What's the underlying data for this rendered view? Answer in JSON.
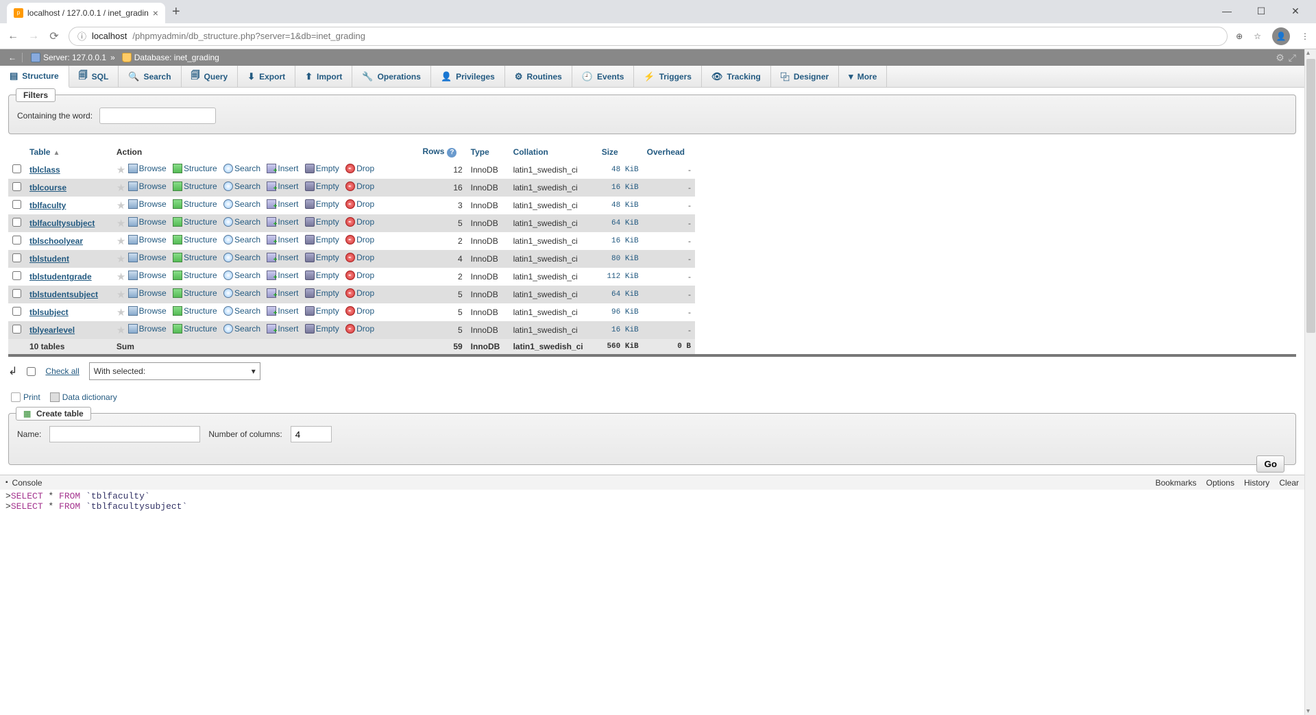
{
  "browser": {
    "tab_title": "localhost / 127.0.0.1 / inet_gradin",
    "url_prefix_icon": "ⓘ",
    "url_host": "localhost",
    "url_path": "/phpmyadmin/db_structure.php?server=1&db=inet_grading"
  },
  "breadcrumb": {
    "server_label": "Server: 127.0.0.1",
    "database_label": "Database: inet_grading"
  },
  "tabs": [
    {
      "icon": "▤",
      "label": "Structure",
      "active": true
    },
    {
      "icon": "🗐",
      "label": "SQL"
    },
    {
      "icon": "🔍",
      "label": "Search"
    },
    {
      "icon": "🗐",
      "label": "Query"
    },
    {
      "icon": "⬇",
      "label": "Export"
    },
    {
      "icon": "⬆",
      "label": "Import"
    },
    {
      "icon": "🔧",
      "label": "Operations"
    },
    {
      "icon": "👤",
      "label": "Privileges"
    },
    {
      "icon": "⚙",
      "label": "Routines"
    },
    {
      "icon": "🕘",
      "label": "Events"
    },
    {
      "icon": "⚡",
      "label": "Triggers"
    },
    {
      "icon": "👁",
      "label": "Tracking"
    },
    {
      "icon": "⿻",
      "label": "Designer"
    },
    {
      "icon": "▾",
      "label": "More"
    }
  ],
  "filters": {
    "legend": "Filters",
    "containing_label": "Containing the word:",
    "value": ""
  },
  "columns": {
    "table": "Table",
    "action": "Action",
    "rows": "Rows",
    "type": "Type",
    "collation": "Collation",
    "size": "Size",
    "overhead": "Overhead"
  },
  "actions": {
    "browse": "Browse",
    "structure": "Structure",
    "search": "Search",
    "insert": "Insert",
    "empty": "Empty",
    "drop": "Drop"
  },
  "rows": [
    {
      "name": "tblclass",
      "rows": "12",
      "type": "InnoDB",
      "collation": "latin1_swedish_ci",
      "size": "48 KiB",
      "overhead": "-"
    },
    {
      "name": "tblcourse",
      "rows": "16",
      "type": "InnoDB",
      "collation": "latin1_swedish_ci",
      "size": "16 KiB",
      "overhead": "-"
    },
    {
      "name": "tblfaculty",
      "rows": "3",
      "type": "InnoDB",
      "collation": "latin1_swedish_ci",
      "size": "48 KiB",
      "overhead": "-"
    },
    {
      "name": "tblfacultysubject",
      "rows": "5",
      "type": "InnoDB",
      "collation": "latin1_swedish_ci",
      "size": "64 KiB",
      "overhead": "-"
    },
    {
      "name": "tblschoolyear",
      "rows": "2",
      "type": "InnoDB",
      "collation": "latin1_swedish_ci",
      "size": "16 KiB",
      "overhead": "-"
    },
    {
      "name": "tblstudent",
      "rows": "4",
      "type": "InnoDB",
      "collation": "latin1_swedish_ci",
      "size": "80 KiB",
      "overhead": "-"
    },
    {
      "name": "tblstudentgrade",
      "rows": "2",
      "type": "InnoDB",
      "collation": "latin1_swedish_ci",
      "size": "112 KiB",
      "overhead": "-"
    },
    {
      "name": "tblstudentsubject",
      "rows": "5",
      "type": "InnoDB",
      "collation": "latin1_swedish_ci",
      "size": "64 KiB",
      "overhead": "-"
    },
    {
      "name": "tblsubject",
      "rows": "5",
      "type": "InnoDB",
      "collation": "latin1_swedish_ci",
      "size": "96 KiB",
      "overhead": "-"
    },
    {
      "name": "tblyearlevel",
      "rows": "5",
      "type": "InnoDB",
      "collation": "latin1_swedish_ci",
      "size": "16 KiB",
      "overhead": "-"
    }
  ],
  "sum": {
    "label": "10 tables",
    "sum_label": "Sum",
    "rows": "59",
    "type": "InnoDB",
    "collation": "latin1_swedish_ci",
    "size": "560 KiB",
    "overhead": "0 B"
  },
  "check_all": {
    "label": "Check all",
    "with_selected": "With selected:"
  },
  "utils": {
    "print": "Print",
    "data_dict": "Data dictionary"
  },
  "create": {
    "legend": "Create table",
    "name_label": "Name:",
    "name_value": "",
    "cols_label": "Number of columns:",
    "cols_value": "4",
    "go": "Go"
  },
  "console": {
    "title": "Console",
    "links": [
      "Bookmarks",
      "Options",
      "History",
      "Clear"
    ],
    "queries": [
      {
        "kw": "SELECT",
        "rest": " * ",
        "from": "FROM",
        "table": "`tblfaculty`"
      },
      {
        "kw": "SELECT",
        "rest": " * ",
        "from": "FROM",
        "table": "`tblfacultysubject`"
      }
    ]
  }
}
